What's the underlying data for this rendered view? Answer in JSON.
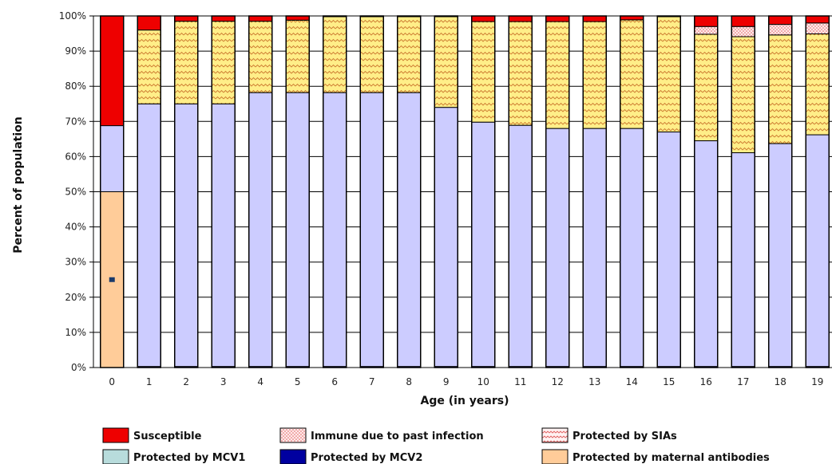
{
  "chart_data": {
    "type": "bar",
    "stacked": true,
    "percent": true,
    "xlabel": "Age (in years)",
    "ylabel": "Percent of population",
    "ylim": [
      0,
      100
    ],
    "y_ticks": [
      "0%",
      "10%",
      "20%",
      "30%",
      "40%",
      "50%",
      "60%",
      "70%",
      "80%",
      "90%",
      "100%"
    ],
    "grid": true,
    "legend_position": "bottom",
    "categories": [
      "0",
      "1",
      "2",
      "3",
      "4",
      "5",
      "6",
      "7",
      "8",
      "9",
      "10",
      "11",
      "12",
      "13",
      "14",
      "15",
      "16",
      "17",
      "18",
      "19"
    ],
    "legend": [
      {
        "name": "Susceptible",
        "color": "#ee0000",
        "pattern": "solid"
      },
      {
        "name": "Immune due to past infection",
        "color": "#ffc8c8",
        "pattern": "dots"
      },
      {
        "name": "Protected by SIAs",
        "color": "#ffd8d8",
        "pattern": "zigzag"
      },
      {
        "name": "Protected by MCV1",
        "color": "#b8dcdc",
        "pattern": "solid"
      },
      {
        "name": "Protected by MCV2",
        "color": "#0000a0",
        "pattern": "solid"
      },
      {
        "name": "Protected by maternal antibodies",
        "color": "#ffcc99",
        "pattern": "solid"
      }
    ],
    "series": [
      {
        "key": "maternal",
        "color": "#ffcc99",
        "pattern": "solid",
        "values": [
          50,
          0,
          0,
          0,
          0,
          0,
          0,
          0,
          0,
          0,
          0,
          0,
          0,
          0,
          0,
          0,
          0,
          0,
          0,
          0
        ]
      },
      {
        "key": "mcv2",
        "color": "#000080",
        "pattern": "solid",
        "values": [
          0,
          0.3,
          0.3,
          0.3,
          0.3,
          0.3,
          0.3,
          0.3,
          0.3,
          0.3,
          0.3,
          0.3,
          0.3,
          0.3,
          0.3,
          0.3,
          0.3,
          0.3,
          0.3,
          0.3
        ]
      },
      {
        "key": "mcv1",
        "color": "#ccccff",
        "pattern": "solid",
        "values": [
          18.8,
          74.7,
          74.7,
          74.7,
          77.9,
          77.9,
          77.9,
          77.9,
          77.9,
          73.7,
          69.5,
          68.6,
          67.7,
          67.7,
          67.7,
          66.7,
          64.2,
          60.8,
          63.4,
          65.9
        ]
      },
      {
        "key": "sias",
        "color": "#ffee88",
        "pattern": "zigzag",
        "values": [
          0,
          21,
          23.5,
          23.5,
          20.3,
          20.6,
          21.6,
          21.6,
          21.6,
          25.8,
          28.6,
          29.5,
          30.4,
          30.4,
          30.9,
          32.8,
          30.3,
          33,
          30.9,
          28.7
        ]
      },
      {
        "key": "past_infection",
        "color": "#ffc8c8",
        "pattern": "dots",
        "values": [
          0,
          0,
          0,
          0,
          0,
          0,
          0,
          0,
          0,
          0,
          0,
          0,
          0,
          0,
          0,
          0,
          2.2,
          2.9,
          3,
          3.1
        ]
      },
      {
        "key": "susceptible",
        "color": "#ee0000",
        "pattern": "solid",
        "values": [
          31.2,
          4,
          1.5,
          1.5,
          1.5,
          1.2,
          0.2,
          0.2,
          0.2,
          0.2,
          1.6,
          1.6,
          1.6,
          1.6,
          1.1,
          0.2,
          3,
          3,
          2.4,
          2
        ]
      }
    ],
    "annotations": [
      {
        "category": "0",
        "y": 25,
        "shape": "square",
        "color": "#1a3a6a"
      }
    ]
  }
}
